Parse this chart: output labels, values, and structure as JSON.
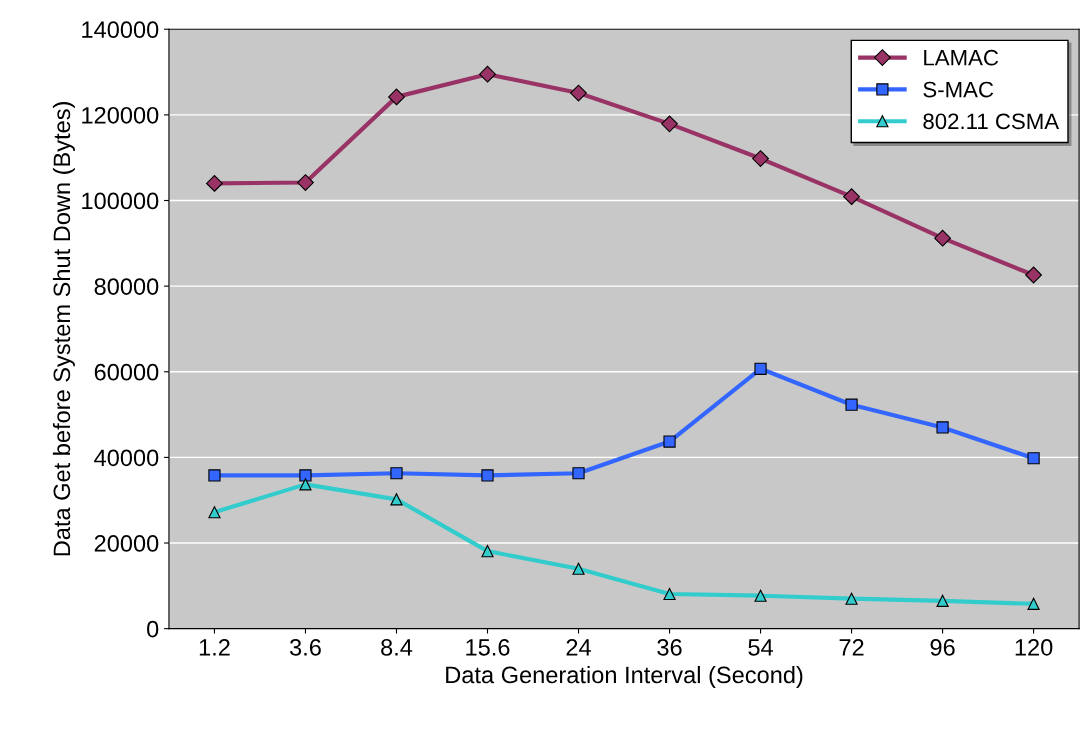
{
  "chart_data": {
    "type": "line",
    "xlabel": "Data Generation Interval (Second)",
    "ylabel": "Data Get before System Shut Down (Bytes)",
    "categories": [
      "1.2",
      "3.6",
      "8.4",
      "15.6",
      "24",
      "36",
      "54",
      "72",
      "96",
      "120"
    ],
    "series": [
      {
        "name": "LAMAC",
        "color": "#993366",
        "marker": "diamond",
        "values": [
          104000,
          104200,
          124200,
          129500,
          125100,
          117900,
          109800,
          100900,
          91200,
          82600
        ]
      },
      {
        "name": "S-MAC",
        "color": "#3366ff",
        "marker": "square",
        "values": [
          35800,
          35800,
          36300,
          35800,
          36300,
          43700,
          60700,
          52300,
          47000,
          39800
        ]
      },
      {
        "name": "802.11 CSMA",
        "color": "#33cccc",
        "marker": "triangle",
        "values": [
          27200,
          33700,
          30200,
          18100,
          14000,
          8100,
          7700,
          7000,
          6500,
          5800
        ]
      }
    ],
    "ylim": [
      0,
      140000
    ],
    "yticks": [
      0,
      20000,
      40000,
      60000,
      80000,
      100000,
      120000,
      140000
    ],
    "grid": "y",
    "legend": "top right",
    "line_style": "solid"
  }
}
